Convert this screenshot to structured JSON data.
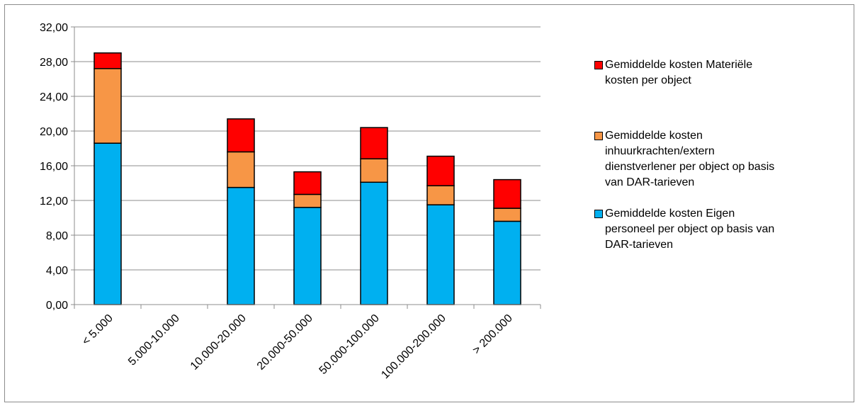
{
  "chart_data": {
    "type": "bar",
    "stacked": true,
    "categories": [
      "< 5.000",
      "5.000-10.000",
      "10.000-20.000",
      "20.000-50.000",
      "50.000-100.000",
      "100.000-200.000",
      "> 200.000"
    ],
    "series": [
      {
        "name": "Gemiddelde kosten Eigen personeel per object op basis van DAR-tarieven",
        "color": "#00b0f0",
        "values": [
          18.6,
          0,
          13.5,
          11.2,
          14.1,
          11.5,
          9.6
        ]
      },
      {
        "name": "Gemiddelde kosten inhuurkrachten/extern dienstverlener per object op basis van DAR-tarieven",
        "color": "#f79646",
        "values": [
          8.6,
          0,
          4.1,
          1.5,
          2.7,
          2.2,
          1.5
        ]
      },
      {
        "name": "Gemiddelde kosten Materiële kosten per object",
        "color": "#ff0000",
        "values": [
          1.8,
          0,
          3.8,
          2.6,
          3.6,
          3.4,
          3.3
        ]
      }
    ],
    "ylim": [
      0,
      32
    ],
    "yticks": [
      "0,00",
      "4,00",
      "8,00",
      "12,00",
      "16,00",
      "20,00",
      "24,00",
      "28,00",
      "32,00"
    ],
    "ytick_values": [
      0,
      4,
      8,
      12,
      16,
      20,
      24,
      28,
      32
    ],
    "grid": true,
    "legend_position": "right",
    "title": "",
    "xlabel": "",
    "ylabel": ""
  },
  "legend": {
    "items": [
      {
        "label": "Gemiddelde kosten Materiële kosten per object",
        "color": "#ff0000"
      },
      {
        "label": "Gemiddelde kosten inhuurkrachten/extern dienstverlener per object op basis van DAR-tarieven",
        "color": "#f79646"
      },
      {
        "label": "Gemiddelde kosten Eigen personeel per object op basis van DAR-tarieven",
        "color": "#00b0f0"
      }
    ]
  }
}
